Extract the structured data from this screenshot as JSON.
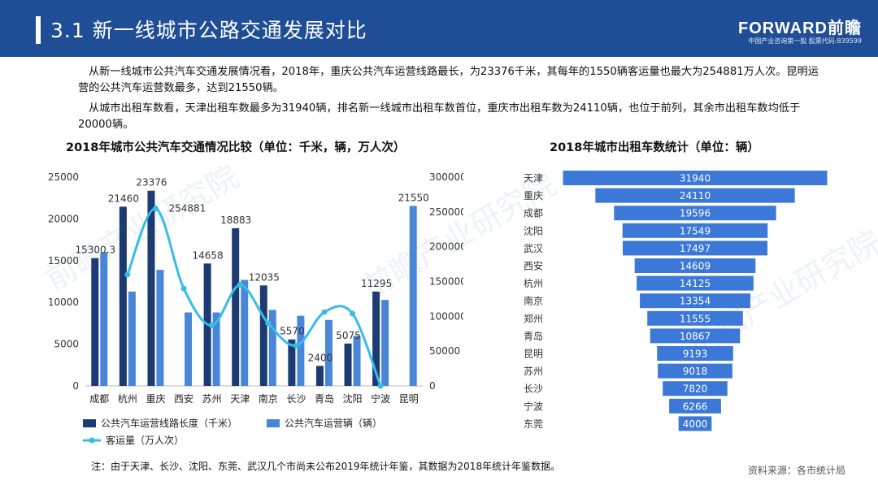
{
  "header": {
    "title": "3.1  新一线城市公路交通发展对比",
    "logo": "FORWARD前瞻",
    "logo_sub": "中国产业咨询第一股  股票代码:839599"
  },
  "paragraphs": [
    "从新一线城市公共汽车交通发展情况看，2018年，重庆公共汽车运营线路最长，为23376千米，其每年的1550辆客运量也最大为254881万人次。昆明运营的公共汽车运营数最多，达到21550辆。",
    "从城市出租车数看，天津出租车数最多为31940辆，排名新一线城市出租车数首位，重庆市出租车数为24110辆，也位于前列，其余市出租车数均低于20000辆。"
  ],
  "watermark": "前瞻产业研究院",
  "footnote": "注：由于天津、长沙、沈阳、东莞、武汉几个市尚未公布2019年统计年鉴，其数据为2018年统计年鉴数据。",
  "source": "资料来源：各市统计局",
  "colors": {
    "header": "#1f4e96",
    "dark_bar": "#1d3b73",
    "light_bar": "#4a86d8",
    "line": "#35bde8",
    "funnel": "#3b78d8"
  },
  "chart_data": [
    {
      "type": "bar",
      "title": "2018年城市公共汽车交通情况比较（单位：千米，辆，万人次）",
      "categories": [
        "成都",
        "杭州",
        "重庆",
        "西安",
        "苏州",
        "天津",
        "南京",
        "长沙",
        "青岛",
        "沈阳",
        "宁波",
        "昆明"
      ],
      "left_axis": {
        "ylim": [
          0,
          25000
        ],
        "ticks": [
          0,
          5000,
          10000,
          15000,
          20000,
          25000
        ]
      },
      "right_axis": {
        "ylim": [
          0,
          300000
        ],
        "ticks": [
          0,
          50000,
          100000,
          150000,
          200000,
          250000,
          300000
        ]
      },
      "series": [
        {
          "name": "公共汽车运营线路长度（千米）",
          "axis": "left",
          "kind": "bar",
          "values": [
            15300.3,
            21460,
            23376,
            null,
            14658,
            18883,
            12035,
            5570,
            2400,
            5075,
            11295,
            null
          ],
          "labels": [
            "15300.3",
            "21460",
            "23376",
            "",
            "14658",
            "18883",
            "12035",
            "5570",
            "2400",
            "5075",
            "11295",
            ""
          ]
        },
        {
          "name": "公共汽车运营辆（辆）",
          "axis": "left",
          "kind": "bar",
          "values": [
            16000,
            11300,
            13900,
            8800,
            8800,
            12700,
            9100,
            8400,
            7900,
            6000,
            10300,
            21550
          ],
          "labels": [
            "",
            "",
            "",
            "",
            "",
            "",
            "",
            "",
            "",
            "",
            "",
            "21550"
          ]
        },
        {
          "name": "客运量（万人次）",
          "axis": "right",
          "kind": "line",
          "values": [
            null,
            160000,
            254881,
            140000,
            87000,
            145000,
            90000,
            58000,
            106000,
            104000,
            0,
            null
          ],
          "labels": [
            "",
            "",
            "254881",
            "",
            "",
            "",
            "",
            "",
            "",
            "",
            "",
            ""
          ]
        }
      ]
    },
    {
      "type": "bar",
      "orientation": "horizontal-funnel",
      "title": "2018年城市出租车数统计（单位：辆）",
      "categories": [
        "天津",
        "重庆",
        "成都",
        "沈阳",
        "武汉",
        "西安",
        "杭州",
        "南京",
        "郑州",
        "青岛",
        "昆明",
        "苏州",
        "长沙",
        "宁波",
        "东莞"
      ],
      "values": [
        31940,
        24110,
        19596,
        17549,
        17497,
        14609,
        14125,
        13354,
        11555,
        10867,
        9193,
        9018,
        7820,
        6266,
        4000
      ]
    }
  ]
}
